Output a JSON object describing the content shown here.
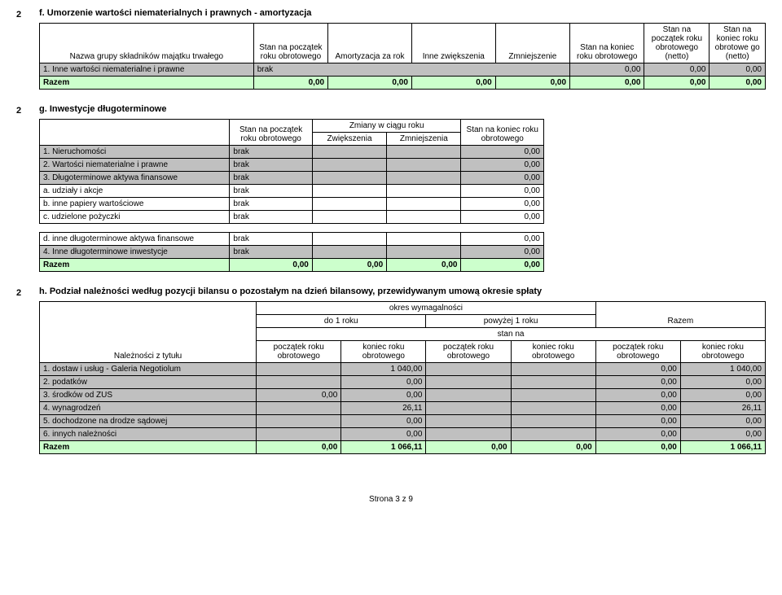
{
  "footer": "Strona 3 z 9",
  "colors": {
    "gray": "#c0c0c0",
    "greenRow": "#ccffcc",
    "border": "#000000",
    "background": "#ffffff"
  },
  "section_f": {
    "num": "2",
    "title": "f. Umorzenie wartości niematerialnych i prawnych - amortyzacja",
    "headers": [
      "Nazwa grupy składników majątku trwałego",
      "Stan na początek roku obrotowego",
      "Amortyzacja za rok",
      "Inne zwiększenia",
      "Zmniejszenie",
      "Stan na koniec roku obrotowego",
      "Stan na początek roku obrotowego (netto)",
      "Stan na koniec roku obrotowe go (netto)"
    ],
    "row1_label": "1. Inne wartości niematerialne i prawne",
    "row1_brak": "brak",
    "row1_v1": "0,00",
    "row1_v2": "0,00",
    "row1_v3": "0,00",
    "razem_label": "Razem",
    "razem_v1": "0,00",
    "razem_v2": "0,00",
    "razem_v3": "0,00",
    "razem_v4": "0,00",
    "razem_v5": "0,00",
    "razem_v6": "0,00",
    "razem_v7": "0,00"
  },
  "section_g": {
    "num": "2",
    "title": "g. Inwestycje długoterminowe",
    "h_blank": "",
    "h_stan_pocz": "Stan na początek roku obrotowego",
    "h_zmiany": "Zmiany w ciągu roku",
    "h_zwiek": "Zwiększenia",
    "h_zmniej": "Zmniejszenia",
    "h_stan_kon": "Stan na koniec roku obrotowego",
    "rows": [
      {
        "label": "1. Nieruchomości",
        "brak": "brak",
        "val": "0,00",
        "gray": true
      },
      {
        "label": "2. Wartości niematerialne i prawne",
        "brak": "brak",
        "val": "0,00",
        "gray": true
      },
      {
        "label": "3. Długoterminowe aktywa finansowe",
        "brak": "brak",
        "val": "0,00",
        "gray": true
      },
      {
        "label": "a. udziały i akcje",
        "brak": "brak",
        "val": "0,00",
        "gray": false
      },
      {
        "label": "b. inne papiery wartościowe",
        "brak": "brak",
        "val": "0,00",
        "gray": false
      },
      {
        "label": "c. udzielone pożyczki",
        "brak": "brak",
        "val": "0,00",
        "gray": false
      }
    ],
    "row_d_label": "d. inne długoterminowe aktywa finansowe",
    "row_d_brak": "brak",
    "row_d_val": "0,00",
    "row4_label": "4. Inne długoterminowe inwestycje",
    "row4_brak": "brak",
    "row4_val": "0,00",
    "razem_label": "Razem",
    "razem_v1": "0,00",
    "razem_v2": "0,00",
    "razem_v3": "0,00",
    "razem_v4": "0,00"
  },
  "section_h": {
    "num": "2",
    "title": "h. Podział należności według pozycji bilansu o pozostałym na dzień bilansowy, przewidywanym umową okresie spłaty",
    "h_okres": "okres wymagalności",
    "h_do1": "do 1 roku",
    "h_pow1": "powyżej 1 roku",
    "h_razem": "Razem",
    "h_stan": "stan na",
    "h_nalez": "Należności z tytułu",
    "h_pocz": "początek roku obrotowego",
    "h_kon": "koniec roku obrotowego",
    "rows": [
      {
        "label": "1. dostaw i usług - Galeria Negotiolum",
        "c1": "",
        "c2": "1 040,00",
        "c3": "",
        "c4": "",
        "c5": "0,00",
        "c6": "1 040,00",
        "gray": true
      },
      {
        "label": "2. podatków",
        "c1": "",
        "c2": "0,00",
        "c3": "",
        "c4": "",
        "c5": "0,00",
        "c6": "0,00",
        "gray": true
      },
      {
        "label": "3. środków od  ZUS",
        "c1": "0,00",
        "c2": "0,00",
        "c3": "",
        "c4": "",
        "c5": "0,00",
        "c6": "0,00",
        "gray": true
      },
      {
        "label": "4. wynagrodzeń",
        "c1": "",
        "c2": "26,11",
        "c3": "",
        "c4": "",
        "c5": "0,00",
        "c6": "26,11",
        "gray": true
      },
      {
        "label": "5. dochodzone na drodze sądowej",
        "c1": "",
        "c2": "0,00",
        "c3": "",
        "c4": "",
        "c5": "0,00",
        "c6": "0,00",
        "gray": true
      },
      {
        "label": "6. innych należności",
        "c1": "",
        "c2": "0,00",
        "c3": "",
        "c4": "",
        "c5": "0,00",
        "c6": "0,00",
        "gray": true
      }
    ],
    "razem_label": "Razem",
    "razem_c1": "0,00",
    "razem_c2": "1 066,11",
    "razem_c3": "0,00",
    "razem_c4": "0,00",
    "razem_c5": "0,00",
    "razem_c6": "1 066,11"
  }
}
